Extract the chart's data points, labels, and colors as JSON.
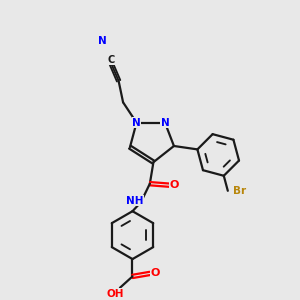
{
  "background_color": "#e8e8e8",
  "bond_color": "#1a1a1a",
  "N_color": "#0000ff",
  "O_color": "#ff0000",
  "Br_color": "#b8860b",
  "C_color": "#1a1a1a",
  "figsize": [
    3.0,
    3.0
  ],
  "dpi": 100,
  "xlim": [
    0,
    10
  ],
  "ylim": [
    0,
    10
  ]
}
